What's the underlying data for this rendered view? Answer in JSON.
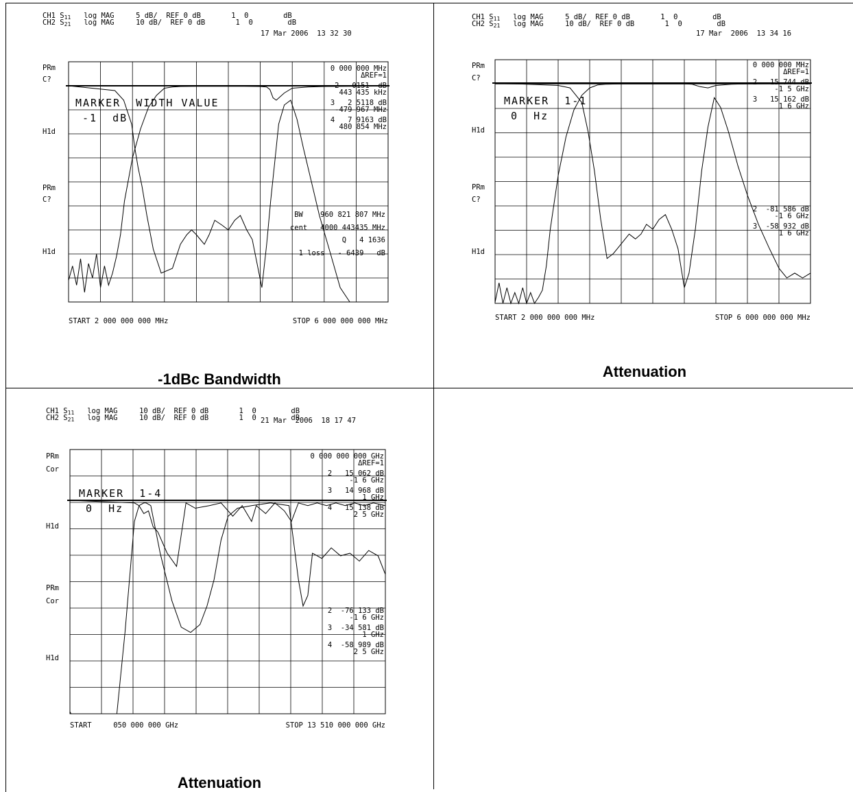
{
  "captions": [
    "-1dBc Bandwidth",
    "Attenuation",
    "Attenuation"
  ],
  "chart_data": [
    {
      "type": "line",
      "title": "-1dBc Bandwidth",
      "timestamp": "17 Mar 2006  13 32 30",
      "channels": [
        {
          "ch": "CH1",
          "param": "S",
          "sub": "11",
          "fmt": "log MAG",
          "scale": "5 dB/",
          "ref": "REF 0 dB",
          "mk": "1",
          "val": "0",
          "unit": "dB"
        },
        {
          "ch": "CH2",
          "param": "S",
          "sub": "21",
          "fmt": "log MAG",
          "scale": "10 dB/",
          "ref": "REF 0 dB",
          "mk": "1",
          "val": "0",
          "unit": "dB"
        }
      ],
      "left_labels": [
        "PRm",
        "C?",
        "H1d",
        "PRm",
        "C?",
        "H1d"
      ],
      "start": "START 2 000 000 000 MHz",
      "stop": "STOP 6 000 000 000 MHz",
      "xlim": [
        2000,
        6000
      ],
      "marker_box": [
        "MARKER  WIDTH VALUE",
        "-1  dB"
      ],
      "readouts": [
        "0 000 000 MHz",
        "ΔREF=1",
        "2   0151  dB",
        "443 435 kHz",
        "3   2 5118 dB",
        "-479 967 MHz",
        "4   7 9163 dB",
        "480 854 MHz"
      ],
      "stats": [
        "BW    960 821 807 MHz",
        "cent   4000 443435 MHz",
        "Q   4 1636",
        "1 loss   - 6439   dB"
      ],
      "series": [
        {
          "name": "S11",
          "x": [
            2000,
            2580,
            2690,
            2790,
            2830,
            2870,
            2920,
            2980,
            3060,
            3160,
            3300,
            3400,
            3480,
            3540,
            3600,
            3650,
            3700,
            3760,
            3830,
            3920,
            4000,
            4080,
            4150,
            4230,
            4300,
            4360,
            4420,
            4480,
            4530,
            4580,
            4630,
            4700,
            4780,
            4860,
            4940,
            5040,
            5140,
            5280,
            5400,
            5520,
            5620,
            5700,
            5800,
            5900,
            6000
          ],
          "y": [
            0,
            -1,
            -3,
            -8,
            -13,
            -17,
            -21,
            -27,
            -34,
            -39,
            -38,
            -33,
            -31,
            -30,
            -31,
            -32,
            -33,
            -31,
            -28,
            -29,
            -30,
            -28,
            -27,
            -30,
            -32,
            -37,
            -42,
            -33,
            -24,
            -16,
            -8,
            -4,
            -3,
            -7,
            -13,
            -20,
            -27,
            -35,
            -42,
            -50,
            -55,
            -57,
            -58,
            -60,
            -58
          ]
        },
        {
          "name": "S21",
          "x": [
            2000,
            2050,
            2100,
            2150,
            2200,
            2250,
            2300,
            2350,
            2400,
            2450,
            2500,
            2550,
            2600,
            2650,
            2700,
            2800,
            2900,
            3000,
            3100,
            3200,
            3300,
            3400,
            3600,
            3800,
            4000,
            4200,
            4400,
            4480,
            4520,
            4560,
            4600,
            4700,
            4800,
            5000,
            5200,
            5500,
            6000
          ],
          "y": [
            -81,
            -75,
            -83,
            -72,
            -86,
            -74,
            -80,
            -70,
            -84,
            -75,
            -83,
            -78,
            -71,
            -62,
            -48,
            -30,
            -18,
            -9,
            -4,
            -1,
            -0.5,
            -0.3,
            -0.2,
            -0.2,
            -0.2,
            -0.2,
            -0.3,
            -0.5,
            -1.5,
            -5,
            -6,
            -3,
            -1,
            -0.5,
            -0.3,
            -0.2,
            -0.1
          ]
        }
      ]
    },
    {
      "type": "line",
      "title": "Attenuation",
      "timestamp": "17 Mar  2006  13 34 16",
      "channels": [
        {
          "ch": "CH1",
          "param": "S",
          "sub": "11",
          "fmt": "log MAG",
          "scale": "5 dB/",
          "ref": "REF 0 dB",
          "mk": "1",
          "val": "0",
          "unit": "dB"
        },
        {
          "ch": "CH2",
          "param": "S",
          "sub": "21",
          "fmt": "log MAG",
          "scale": "10 dB/",
          "ref": "REF 0 dB",
          "mk": "1",
          "val": "0",
          "unit": "dB"
        }
      ],
      "left_labels": [
        "PRm",
        "C?",
        "H1d",
        "PRm",
        "C?",
        "H1d"
      ],
      "start": "START 2 000 000 000 MHz",
      "stop": "STOP 6 000 000 000 MHz",
      "xlim": [
        2000,
        6000
      ],
      "marker_box": [
        "MARKER  1-1",
        "0  Hz"
      ],
      "readouts": [
        "0 000 000 MHz",
        "ΔREF=1",
        "2   15 744 dB",
        "-1 5 GHz",
        "3   15 162 dB",
        "1 6 GHz"
      ],
      "lower_readouts": [
        "2  -81 586 dB",
        "-1 6 GHz",
        "3  -58 932 dB",
        "1 6 GHz"
      ],
      "series": [
        {
          "name": "S11",
          "x": [
            2000,
            2800,
            2950,
            3100,
            3180,
            3260,
            3340,
            3420,
            3500,
            3600,
            3700,
            3780,
            3850,
            3920,
            4000,
            4080,
            4160,
            4240,
            4320,
            4400,
            4460,
            4540,
            4620,
            4700,
            4780,
            4860,
            4960,
            5080,
            5200,
            5340,
            5480,
            5600,
            5700,
            5800,
            5900,
            6000
          ],
          "y": [
            0,
            -0.5,
            -1,
            -4,
            -10,
            -18,
            -28,
            -36,
            -35,
            -33,
            -31,
            -32,
            -31,
            -29,
            -30,
            -28,
            -27,
            -30,
            -34,
            -42,
            -39,
            -30,
            -18,
            -9,
            -3,
            -5,
            -10,
            -17,
            -23,
            -29,
            -34,
            -38,
            -40,
            -39,
            -40,
            -39
          ]
        },
        {
          "name": "S21",
          "x": [
            2000,
            2050,
            2100,
            2150,
            2200,
            2250,
            2300,
            2350,
            2400,
            2450,
            2500,
            2550,
            2600,
            2650,
            2700,
            2800,
            2900,
            3000,
            3100,
            3200,
            3300,
            3400,
            3600,
            3800,
            4000,
            4200,
            4400,
            4500,
            4600,
            4700,
            4800,
            5000,
            5200,
            5500,
            6000
          ],
          "y": [
            -90,
            -82,
            -94,
            -84,
            -96,
            -86,
            -92,
            -84,
            -98,
            -86,
            -95,
            -88,
            -85,
            -75,
            -60,
            -38,
            -22,
            -11,
            -5,
            -2,
            -0.8,
            -0.5,
            -0.3,
            -0.3,
            -0.3,
            -0.3,
            -0.3,
            -0.5,
            -1.5,
            -2,
            -1,
            -0.5,
            -0.3,
            -0.2,
            -0.1
          ]
        }
      ]
    },
    {
      "type": "line",
      "title": "Attenuation",
      "timestamp": "21 Mar  2006  18 17 47",
      "channels": [
        {
          "ch": "CH1",
          "param": "S",
          "sub": "11",
          "fmt": "log MAG",
          "scale": "10 dB/",
          "ref": "REF 0 dB",
          "mk": "1",
          "val": "0",
          "unit": "dB"
        },
        {
          "ch": "CH2",
          "param": "S",
          "sub": "21",
          "fmt": "log MAG",
          "scale": "10 dB/",
          "ref": "REF 0 dB",
          "mk": "1",
          "val": "0",
          "unit": "dB"
        }
      ],
      "left_labels": [
        "PRm",
        "Cor",
        "H1d",
        "PRm",
        "Cor",
        "H1d"
      ],
      "start": "START     050 000 000 GHz",
      "stop": "STOP 13 510 000 000 GHz",
      "xlim": [
        0.05,
        13.51
      ],
      "marker_box": [
        "MARKER  1-4",
        "0  Hz"
      ],
      "readouts": [
        "0 000 000 000 GHz",
        "ΔREF=1",
        "2   15 062 dB",
        "-1 6 GHz",
        "3   14 968 dB",
        "1 GHz",
        "4   15 138 dB",
        "2 5 GHz"
      ],
      "lower_readouts": [
        "2  -76 133 dB",
        "-1 6 GHz",
        "3  -34 581 dB",
        "1 GHz",
        "4  -58 989 dB",
        "2 5 GHz"
      ],
      "series": [
        {
          "name": "S11",
          "x": [
            0.05,
            2.8,
            3.0,
            3.2,
            3.4,
            3.6,
            3.8,
            4.2,
            4.6,
            5.0,
            5.4,
            6.0,
            6.5,
            7.0,
            7.4,
            7.8,
            8.0,
            8.4,
            8.8,
            9.2,
            9.5,
            9.8,
            10.2,
            10.6,
            11.0,
            11.4,
            11.8,
            12.2,
            12.6,
            13.0,
            13.51
          ],
          "y": [
            0,
            -1,
            -2,
            -5,
            -4,
            -10,
            -12,
            -20,
            -25,
            -1,
            -3,
            -2,
            -1,
            -6,
            -2,
            -8,
            -2,
            -5,
            -1,
            -4,
            -8,
            -1,
            -2,
            -1,
            -2,
            -1,
            -2,
            -1,
            -2,
            -1,
            -2
          ]
        },
        {
          "name": "S21",
          "x": [
            0.05,
            0.1,
            0.3,
            0.6,
            1.0,
            1.5,
            1.8,
            2.05,
            2.4,
            2.8,
            3.0,
            3.2,
            3.3,
            3.5,
            3.9,
            4.4,
            4.8,
            5.2,
            5.6,
            5.9,
            6.2,
            6.5,
            6.8,
            7.2,
            7.8,
            8.6,
            9.4,
            9.8,
            10.0,
            10.2,
            10.4,
            10.8,
            11.2,
            11.6,
            12.0,
            12.4,
            12.8,
            13.2,
            13.51
          ],
          "y": [
            -80,
            -98,
            -95,
            -98,
            -96,
            -97,
            -95,
            -98,
            -50,
            -8,
            -2,
            -1,
            -1,
            -2,
            -20,
            -38,
            -48,
            -50,
            -47,
            -40,
            -30,
            -15,
            -6,
            -3,
            -2,
            -1,
            -2,
            -30,
            -40,
            -36,
            -20,
            -22,
            -18,
            -21,
            -20,
            -23,
            -19,
            -21,
            -28
          ]
        }
      ]
    }
  ]
}
